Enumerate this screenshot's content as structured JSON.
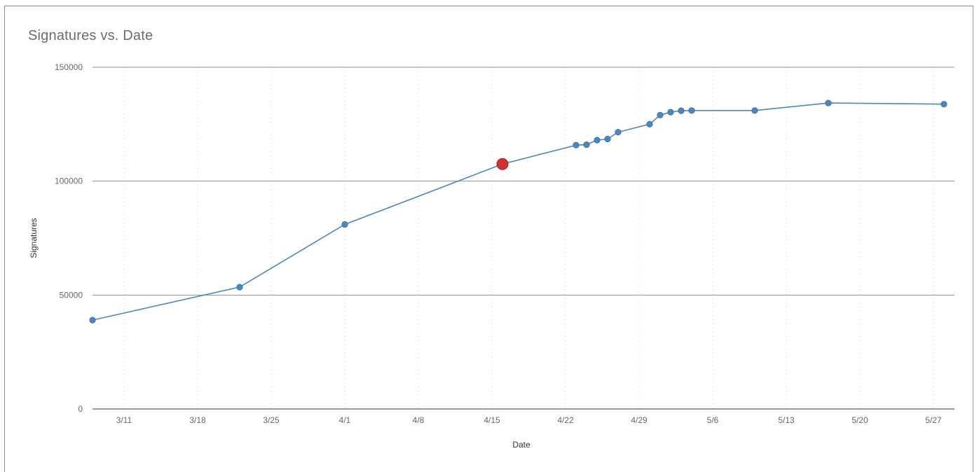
{
  "chart_data": {
    "type": "line",
    "title": "Signatures vs. Date",
    "xlabel": "Date",
    "ylabel": "Signatures",
    "ylim": [
      0,
      150000
    ],
    "yticks": [
      0,
      50000,
      100000,
      150000
    ],
    "ytick_labels": [
      "0",
      "50000",
      "100000",
      "150000"
    ],
    "xlim": [
      "2014-03-08",
      "2014-05-29"
    ],
    "xticks": [
      "2014-03-11",
      "2014-03-18",
      "2014-03-25",
      "2014-04-01",
      "2014-04-08",
      "2014-04-15",
      "2014-04-22",
      "2014-04-29",
      "2014-05-06",
      "2014-05-13",
      "2014-05-20",
      "2014-05-27"
    ],
    "xtick_labels": [
      "3/11",
      "3/18",
      "3/25",
      "4/1",
      "4/8",
      "4/15",
      "4/22",
      "4/29",
      "5/6",
      "5/13",
      "5/20",
      "5/27"
    ],
    "grid": true,
    "line_color": "#4a86c0",
    "highlight_color": "#cc3333",
    "series": [
      {
        "points": [
          {
            "x": "2014-03-08",
            "y": 39000
          },
          {
            "x": "2014-03-22",
            "y": 53500
          },
          {
            "x": "2014-04-01",
            "y": 81000
          },
          {
            "x": "2014-04-16",
            "y": 107500,
            "highlight": true
          },
          {
            "x": "2014-04-23",
            "y": 115800
          },
          {
            "x": "2014-04-24",
            "y": 116000
          },
          {
            "x": "2014-04-25",
            "y": 118000
          },
          {
            "x": "2014-04-26",
            "y": 118500
          },
          {
            "x": "2014-04-27",
            "y": 121500
          },
          {
            "x": "2014-04-30",
            "y": 125000
          },
          {
            "x": "2014-05-01",
            "y": 129000
          },
          {
            "x": "2014-05-02",
            "y": 130300
          },
          {
            "x": "2014-05-03",
            "y": 130900
          },
          {
            "x": "2014-05-04",
            "y": 131000
          },
          {
            "x": "2014-05-10",
            "y": 131000
          },
          {
            "x": "2014-05-17",
            "y": 134300
          },
          {
            "x": "2014-05-28",
            "y": 133800
          }
        ]
      }
    ]
  }
}
